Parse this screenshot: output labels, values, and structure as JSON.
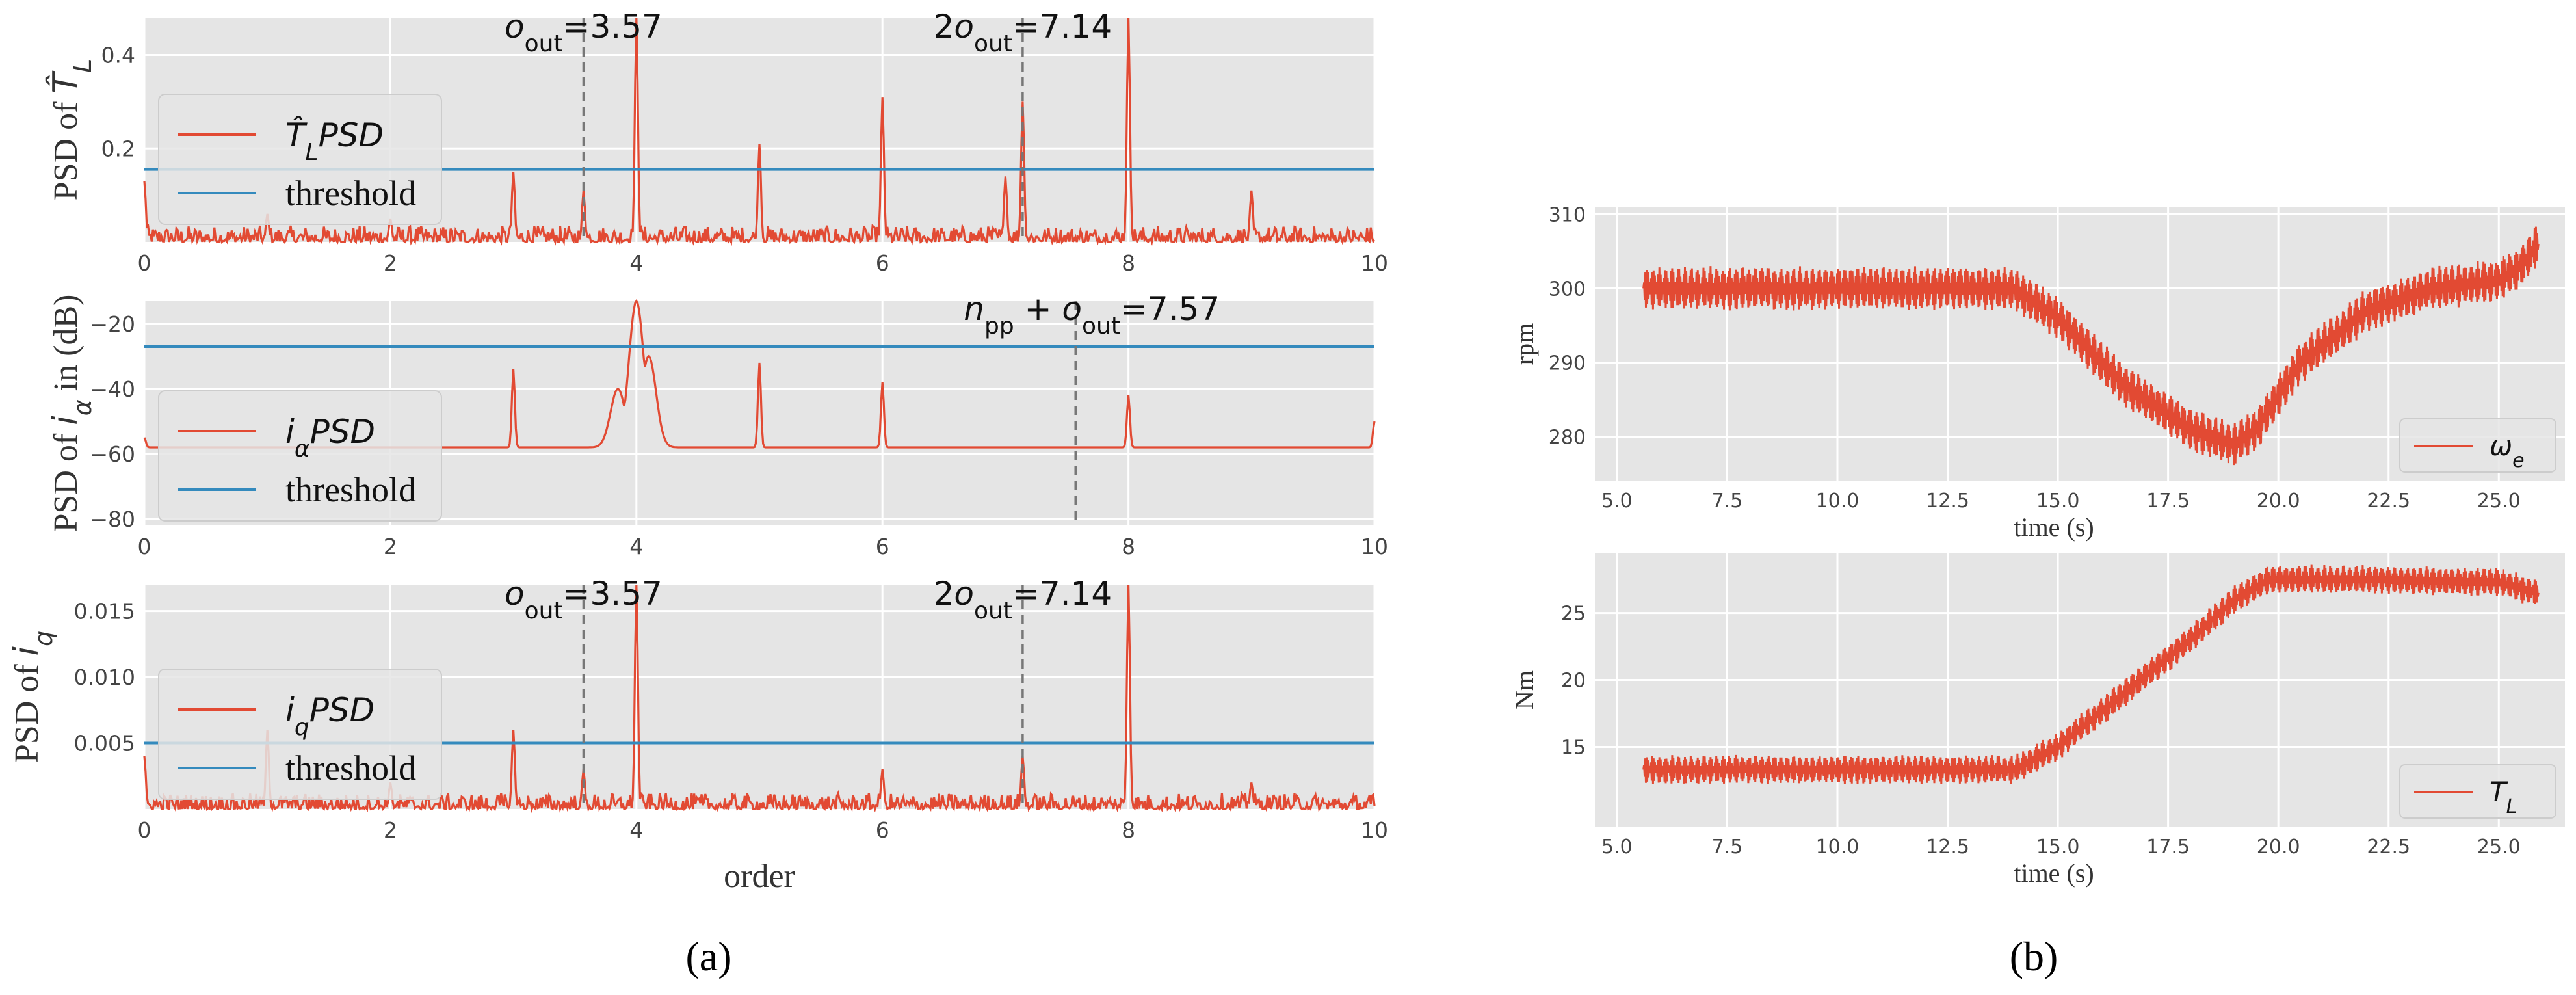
{
  "figure": {
    "panel_a_label": "(a)",
    "panel_b_label": "(b)",
    "colors": {
      "signal": "#e24a33",
      "threshold": "#348abd",
      "marker": "#777777",
      "background": "#e5e5e5"
    }
  },
  "chart_data": [
    {
      "id": "a1",
      "type": "line",
      "ylabel": "PSD of T̂_L",
      "xlim": [
        0,
        10
      ],
      "ylim": [
        0,
        0.48
      ],
      "xticks": [
        "0",
        "2",
        "4",
        "6",
        "8",
        "10"
      ],
      "yticks": [
        0.2,
        0.4
      ],
      "ytick_labels": [
        "0.2",
        "0.4"
      ],
      "legend": {
        "signal": "T̂_LPSD",
        "threshold": "threshold",
        "placement": "left"
      },
      "threshold": 0.155,
      "markers": [
        {
          "x": 3.57,
          "label": "o_out=3.57"
        },
        {
          "x": 7.14,
          "label": "2o_out=7.14"
        }
      ],
      "baseline": [
        0.0,
        0.035
      ],
      "peaks": [
        [
          0.0,
          0.13
        ],
        [
          1.0,
          0.06
        ],
        [
          2.0,
          0.05
        ],
        [
          3.0,
          0.15
        ],
        [
          3.57,
          0.11
        ],
        [
          4.0,
          0.48
        ],
        [
          5.0,
          0.21
        ],
        [
          6.0,
          0.31
        ],
        [
          7.0,
          0.14
        ],
        [
          7.14,
          0.3
        ],
        [
          8.0,
          0.48
        ],
        [
          9.0,
          0.11
        ]
      ]
    },
    {
      "id": "a2",
      "type": "line",
      "ylabel": "PSD of i_α in (dB)",
      "xlim": [
        0,
        10
      ],
      "ylim": [
        -82,
        -13
      ],
      "xticks": [
        "0",
        "2",
        "4",
        "6",
        "8",
        "10"
      ],
      "yticks": [
        -20,
        -40,
        -60,
        -80
      ],
      "ytick_labels": [
        "−20",
        "−40",
        "−60",
        "−80"
      ],
      "legend": {
        "signal": "i_αPSD",
        "threshold": "threshold",
        "placement": "left"
      },
      "threshold": -27,
      "markers": [
        {
          "x": 7.57,
          "label": "n_pp+o_out=7.57"
        }
      ],
      "baseline": [
        -75,
        -58
      ],
      "peaks": [
        [
          0.0,
          -55
        ],
        [
          3.0,
          -34
        ],
        [
          3.85,
          -40
        ],
        [
          4.0,
          -13
        ],
        [
          4.1,
          -30
        ],
        [
          5.0,
          -32
        ],
        [
          6.0,
          -38
        ],
        [
          8.0,
          -42
        ],
        [
          10.0,
          -50
        ]
      ]
    },
    {
      "id": "a3",
      "type": "line",
      "ylabel": "PSD of i_q",
      "xlabel": "order",
      "xlim": [
        0,
        10
      ],
      "ylim": [
        0,
        0.017
      ],
      "xticks": [
        "0",
        "2",
        "4",
        "6",
        "8",
        "10"
      ],
      "yticks": [
        0.005,
        0.01,
        0.015
      ],
      "ytick_labels": [
        "0.005",
        "0.010",
        "0.015"
      ],
      "legend": {
        "signal": "i_qPSD",
        "threshold": "threshold",
        "placement": "left"
      },
      "threshold": 0.005,
      "markers": [
        {
          "x": 3.57,
          "label": "o_out=3.57"
        },
        {
          "x": 7.14,
          "label": "2o_out=7.14"
        }
      ],
      "baseline": [
        0.0,
        0.0012
      ],
      "peaks": [
        [
          0.0,
          0.004
        ],
        [
          1.0,
          0.006
        ],
        [
          2.0,
          0.002
        ],
        [
          3.0,
          0.006
        ],
        [
          3.57,
          0.003
        ],
        [
          4.0,
          0.017
        ],
        [
          6.0,
          0.003
        ],
        [
          7.14,
          0.004
        ],
        [
          8.0,
          0.017
        ],
        [
          9.0,
          0.002
        ]
      ]
    },
    {
      "id": "b1",
      "type": "line",
      "ylabel": "rpm",
      "xlabel": "time (s)",
      "xlim": [
        4.5,
        26.5
      ],
      "ylim": [
        274,
        311
      ],
      "xticks": [
        5.0,
        7.5,
        10.0,
        12.5,
        15.0,
        17.5,
        20.0,
        22.5,
        25.0
      ],
      "xtick_labels": [
        "5.0",
        "7.5",
        "10.0",
        "12.5",
        "15.0",
        "17.5",
        "20.0",
        "22.5",
        "25.0"
      ],
      "yticks": [
        280,
        290,
        300,
        310
      ],
      "ytick_labels": [
        "280",
        "290",
        "300",
        "310"
      ],
      "legend": {
        "signal": "ω_e",
        "placement": "lower right"
      },
      "x_range": [
        5.6,
        25.9
      ],
      "envelope": [
        [
          5.6,
          300
        ],
        [
          14.0,
          300
        ],
        [
          15.0,
          296
        ],
        [
          16.5,
          287
        ],
        [
          18.0,
          281
        ],
        [
          19.0,
          279
        ],
        [
          19.5,
          281
        ],
        [
          20.5,
          290
        ],
        [
          22.0,
          297
        ],
        [
          23.5,
          300
        ],
        [
          25.0,
          301
        ],
        [
          25.5,
          303
        ],
        [
          25.9,
          306
        ]
      ],
      "amplitude": 3
    },
    {
      "id": "b2",
      "type": "line",
      "ylabel": "Nm",
      "xlabel": "time (s)",
      "xlim": [
        4.5,
        26.5
      ],
      "ylim": [
        9,
        29.5
      ],
      "xticks": [
        5.0,
        7.5,
        10.0,
        12.5,
        15.0,
        17.5,
        20.0,
        22.5,
        25.0
      ],
      "xtick_labels": [
        "5.0",
        "7.5",
        "10.0",
        "12.5",
        "15.0",
        "17.5",
        "20.0",
        "22.5",
        "25.0"
      ],
      "yticks": [
        15,
        20,
        25
      ],
      "ytick_labels": [
        "15",
        "20",
        "25"
      ],
      "legend": {
        "signal": "T_L",
        "placement": "lower right"
      },
      "x_range": [
        5.6,
        25.9
      ],
      "envelope": [
        [
          5.6,
          13.3
        ],
        [
          14.0,
          13.3
        ],
        [
          15.0,
          15
        ],
        [
          16.5,
          19
        ],
        [
          18.0,
          23
        ],
        [
          19.0,
          26
        ],
        [
          19.8,
          27.5
        ],
        [
          22.0,
          27.5
        ],
        [
          25.0,
          27.3
        ],
        [
          25.9,
          26.5
        ]
      ],
      "amplitude": 1.1
    }
  ]
}
